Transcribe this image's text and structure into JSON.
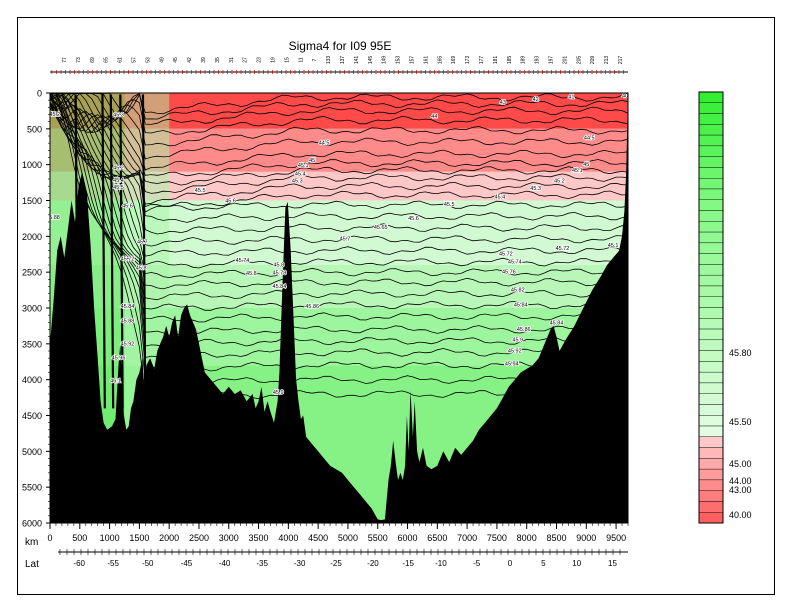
{
  "chart_data": {
    "type": "heatmap",
    "title": "Sigma4 for I09 95E",
    "xlabel": "km",
    "x2label": "Lat",
    "ylabel": "",
    "xlim": [
      0,
      9700
    ],
    "ylim": [
      6000,
      0
    ],
    "x_ticks": [
      0,
      500,
      1000,
      1500,
      2000,
      2500,
      3000,
      3500,
      4000,
      4500,
      5000,
      5500,
      6000,
      6500,
      7000,
      7500,
      8000,
      8500,
      9000,
      9500
    ],
    "y_ticks": [
      0,
      500,
      1000,
      1500,
      2000,
      2500,
      3000,
      3500,
      4000,
      4500,
      5000,
      5500,
      6000
    ],
    "lat_ticks": [
      {
        "label": "-60",
        "km": 490
      },
      {
        "label": "-55",
        "km": 1060
      },
      {
        "label": "-50",
        "km": 1640
      },
      {
        "label": "-45",
        "km": 2290
      },
      {
        "label": "-40",
        "km": 2930
      },
      {
        "label": "-35",
        "km": 3560
      },
      {
        "label": "-30",
        "km": 4190
      },
      {
        "label": "-25",
        "km": 4800
      },
      {
        "label": "-20",
        "km": 5420
      },
      {
        "label": "-15",
        "km": 6010
      },
      {
        "label": "-10",
        "km": 6560
      },
      {
        "label": "-5",
        "km": 7160
      },
      {
        "label": "0",
        "km": 7720
      },
      {
        "label": "5",
        "km": 8280
      },
      {
        "label": "10",
        "km": 8840
      },
      {
        "label": "15",
        "km": 9440
      }
    ],
    "stations": [
      "77",
      "73",
      "69",
      "65",
      "61",
      "57",
      "53",
      "49",
      "45",
      "42",
      "39",
      "35",
      "31",
      "27",
      "23",
      "19",
      "15",
      "11",
      "7",
      "133",
      "137",
      "141",
      "145",
      "149",
      "153",
      "157",
      "161",
      "165",
      "169",
      "173",
      "177",
      "181",
      "185",
      "189",
      "193",
      "197",
      "201",
      "205",
      "209",
      "213",
      "217"
    ],
    "colorbar": {
      "labels": [
        "45.80",
        "45.50",
        "45.00",
        "44.00",
        "43.00",
        "40.00"
      ],
      "green": "#33ee33",
      "red": "#ff5050"
    },
    "density_bands": [
      {
        "sigma": "40.00",
        "top": 0,
        "color": "#ff4a4a"
      },
      {
        "sigma": "44.5",
        "top": 500,
        "color": "#ff8a8a"
      },
      {
        "sigma": "45.2",
        "top": 1100,
        "color": "#ffc8c8"
      },
      {
        "sigma": "45.6",
        "top": 1500,
        "color": "#d2fad2"
      },
      {
        "sigma": "45.72",
        "top": 2400,
        "color": "#b8f7b8"
      },
      {
        "sigma": "45.84",
        "top": 3000,
        "color": "#9df59d"
      },
      {
        "sigma": "45.94",
        "top": 3800,
        "color": "#86f286"
      }
    ],
    "contour_labels": [
      {
        "text": "45.2",
        "km": 80,
        "depth": 320
      },
      {
        "text": "45.3",
        "km": 1150,
        "depth": 330
      },
      {
        "text": "45.2",
        "km": 1150,
        "depth": 1070
      },
      {
        "text": "45.4",
        "km": 1150,
        "depth": 1240
      },
      {
        "text": "45.5",
        "km": 1150,
        "depth": 1340
      },
      {
        "text": "45.6",
        "km": 1300,
        "depth": 1600
      },
      {
        "text": "45.88",
        "km": 50,
        "depth": 1760
      },
      {
        "text": "45.7",
        "km": 1550,
        "depth": 2100
      },
      {
        "text": "45.72",
        "km": 1300,
        "depth": 2340
      },
      {
        "text": "45.8",
        "km": 1530,
        "depth": 2460
      },
      {
        "text": "45.84",
        "km": 1300,
        "depth": 3000
      },
      {
        "text": "45.88",
        "km": 1300,
        "depth": 3200
      },
      {
        "text": "45.92",
        "km": 1300,
        "depth": 3520
      },
      {
        "text": "45.96",
        "km": 1150,
        "depth": 3720
      },
      {
        "text": "46.1",
        "km": 1100,
        "depth": 4040
      },
      {
        "text": "45.5",
        "km": 2520,
        "depth": 1380
      },
      {
        "text": "45.6",
        "km": 3030,
        "depth": 1530
      },
      {
        "text": "45.74",
        "km": 3230,
        "depth": 2360
      },
      {
        "text": "45.8",
        "km": 3380,
        "depth": 2540
      },
      {
        "text": "45.8",
        "km": 3840,
        "depth": 2420
      },
      {
        "text": "45.78",
        "km": 3850,
        "depth": 2530
      },
      {
        "text": "45.84",
        "km": 3850,
        "depth": 2720
      },
      {
        "text": "45.86",
        "km": 4400,
        "depth": 3000
      },
      {
        "text": "45.4",
        "km": 4200,
        "depth": 1150
      },
      {
        "text": "45.3",
        "km": 4150,
        "depth": 1250
      },
      {
        "text": "45.1",
        "km": 4250,
        "depth": 1030
      },
      {
        "text": "45",
        "km": 4400,
        "depth": 960
      },
      {
        "text": "44.5",
        "km": 4600,
        "depth": 720
      },
      {
        "text": "44",
        "km": 6450,
        "depth": 350
      },
      {
        "text": "43",
        "km": 7600,
        "depth": 150
      },
      {
        "text": "42",
        "km": 8150,
        "depth": 110
      },
      {
        "text": "41",
        "km": 8750,
        "depth": 80
      },
      {
        "text": "40",
        "km": 9650,
        "depth": 60
      },
      {
        "text": "44.5",
        "km": 9050,
        "depth": 650
      },
      {
        "text": "45",
        "km": 9000,
        "depth": 1020
      },
      {
        "text": "45.1",
        "km": 8850,
        "depth": 1100
      },
      {
        "text": "45.2",
        "km": 8550,
        "depth": 1250
      },
      {
        "text": "45.3",
        "km": 8150,
        "depth": 1350
      },
      {
        "text": "45.4",
        "km": 7550,
        "depth": 1470
      },
      {
        "text": "45.5",
        "km": 6700,
        "depth": 1580
      },
      {
        "text": "45.6",
        "km": 6100,
        "depth": 1770
      },
      {
        "text": "45.65",
        "km": 5550,
        "depth": 1900
      },
      {
        "text": "45.7",
        "km": 4950,
        "depth": 2060
      },
      {
        "text": "45.72",
        "km": 7650,
        "depth": 2270
      },
      {
        "text": "45.74",
        "km": 7800,
        "depth": 2380
      },
      {
        "text": "45.76",
        "km": 7700,
        "depth": 2520
      },
      {
        "text": "45.72",
        "km": 8600,
        "depth": 2190
      },
      {
        "text": "45.1",
        "km": 9450,
        "depth": 2150
      },
      {
        "text": "45.82",
        "km": 7850,
        "depth": 2770
      },
      {
        "text": "45.84",
        "km": 7900,
        "depth": 2980
      },
      {
        "text": "45.86",
        "km": 7950,
        "depth": 3320
      },
      {
        "text": "45.84",
        "km": 8500,
        "depth": 3230
      },
      {
        "text": "45.9",
        "km": 7850,
        "depth": 3470
      },
      {
        "text": "45.92",
        "km": 7800,
        "depth": 3620
      },
      {
        "text": "45.94",
        "km": 7750,
        "depth": 3800
      },
      {
        "text": "45.9",
        "km": 3830,
        "depth": 4200
      }
    ],
    "bathymetry": [
      [
        0,
        3500
      ],
      [
        60,
        2900
      ],
      [
        120,
        2200
      ],
      [
        180,
        2000
      ],
      [
        240,
        2300
      ],
      [
        300,
        1900
      ],
      [
        360,
        1500
      ],
      [
        420,
        1800
      ],
      [
        480,
        1300
      ],
      [
        540,
        1100
      ],
      [
        580,
        1250
      ],
      [
        620,
        1400
      ],
      [
        680,
        2100
      ],
      [
        740,
        3000
      ],
      [
        800,
        3700
      ],
      [
        850,
        4300
      ],
      [
        900,
        4600
      ],
      [
        960,
        4700
      ],
      [
        1040,
        4650
      ],
      [
        1100,
        4550
      ],
      [
        1150,
        3800
      ],
      [
        1180,
        3500
      ],
      [
        1210,
        4000
      ],
      [
        1240,
        4500
      ],
      [
        1280,
        4700
      ],
      [
        1320,
        4650
      ],
      [
        1360,
        4400
      ],
      [
        1400,
        4300
      ],
      [
        1450,
        4000
      ],
      [
        1500,
        3900
      ],
      [
        1550,
        3700
      ],
      [
        1580,
        4100
      ],
      [
        1620,
        3800
      ],
      [
        1680,
        3700
      ],
      [
        1750,
        3850
      ],
      [
        1800,
        3600
      ],
      [
        1850,
        3500
      ],
      [
        1900,
        3400
      ],
      [
        1950,
        3250
      ],
      [
        2000,
        3400
      ],
      [
        2050,
        3200
      ],
      [
        2100,
        3100
      ],
      [
        2150,
        3400
      ],
      [
        2200,
        3100
      ],
      [
        2250,
        3000
      ],
      [
        2300,
        2950
      ],
      [
        2350,
        3100
      ],
      [
        2400,
        3200
      ],
      [
        2450,
        3300
      ],
      [
        2500,
        3500
      ],
      [
        2550,
        3700
      ],
      [
        2600,
        3900
      ],
      [
        2700,
        4000
      ],
      [
        2800,
        4100
      ],
      [
        2900,
        4200
      ],
      [
        3000,
        4100
      ],
      [
        3100,
        4200
      ],
      [
        3200,
        4150
      ],
      [
        3300,
        4300
      ],
      [
        3400,
        4200
      ],
      [
        3450,
        4400
      ],
      [
        3500,
        4300
      ],
      [
        3550,
        4100
      ],
      [
        3600,
        4450
      ],
      [
        3650,
        4300
      ],
      [
        3700,
        4450
      ],
      [
        3760,
        4600
      ],
      [
        3820,
        4300
      ],
      [
        3850,
        3900
      ],
      [
        3900,
        2700
      ],
      [
        3950,
        1600
      ],
      [
        3990,
        1520
      ],
      [
        4040,
        2200
      ],
      [
        4090,
        3200
      ],
      [
        4130,
        4000
      ],
      [
        4170,
        4300
      ],
      [
        4210,
        4550
      ],
      [
        4250,
        4500
      ],
      [
        4300,
        4800
      ],
      [
        4400,
        4900
      ],
      [
        4500,
        5000
      ],
      [
        4600,
        5100
      ],
      [
        4700,
        5200
      ],
      [
        4800,
        5250
      ],
      [
        4900,
        5300
      ],
      [
        5000,
        5400
      ],
      [
        5100,
        5500
      ],
      [
        5200,
        5600
      ],
      [
        5300,
        5700
      ],
      [
        5400,
        5800
      ],
      [
        5500,
        5950
      ],
      [
        5560,
        5960
      ],
      [
        5620,
        5950
      ],
      [
        5680,
        5400
      ],
      [
        5720,
        5200
      ],
      [
        5760,
        4850
      ],
      [
        5800,
        5150
      ],
      [
        5840,
        5400
      ],
      [
        5880,
        5300
      ],
      [
        5920,
        5400
      ],
      [
        5960,
        5200
      ],
      [
        5990,
        4500
      ],
      [
        6020,
        5000
      ],
      [
        6050,
        4150
      ],
      [
        6090,
        4800
      ],
      [
        6120,
        4300
      ],
      [
        6160,
        5000
      ],
      [
        6200,
        5150
      ],
      [
        6260,
        4950
      ],
      [
        6320,
        5200
      ],
      [
        6400,
        5250
      ],
      [
        6500,
        5200
      ],
      [
        6600,
        5000
      ],
      [
        6700,
        5150
      ],
      [
        6800,
        4950
      ],
      [
        6900,
        5050
      ],
      [
        7000,
        4950
      ],
      [
        7100,
        4850
      ],
      [
        7200,
        4700
      ],
      [
        7300,
        4600
      ],
      [
        7400,
        4500
      ],
      [
        7500,
        4400
      ],
      [
        7600,
        4250
      ],
      [
        7700,
        4100
      ],
      [
        7800,
        4000
      ],
      [
        7900,
        3900
      ],
      [
        8000,
        3850
      ],
      [
        8100,
        3800
      ],
      [
        8200,
        3700
      ],
      [
        8300,
        3500
      ],
      [
        8400,
        3300
      ],
      [
        8450,
        3250
      ],
      [
        8500,
        3400
      ],
      [
        8550,
        3600
      ],
      [
        8650,
        3450
      ],
      [
        8800,
        3250
      ],
      [
        8950,
        3000
      ],
      [
        9100,
        2750
      ],
      [
        9250,
        2550
      ],
      [
        9350,
        2400
      ],
      [
        9450,
        2300
      ],
      [
        9550,
        2200
      ],
      [
        9600,
        2000
      ],
      [
        9640,
        1650
      ],
      [
        9670,
        1100
      ],
      [
        9700,
        0
      ]
    ]
  }
}
